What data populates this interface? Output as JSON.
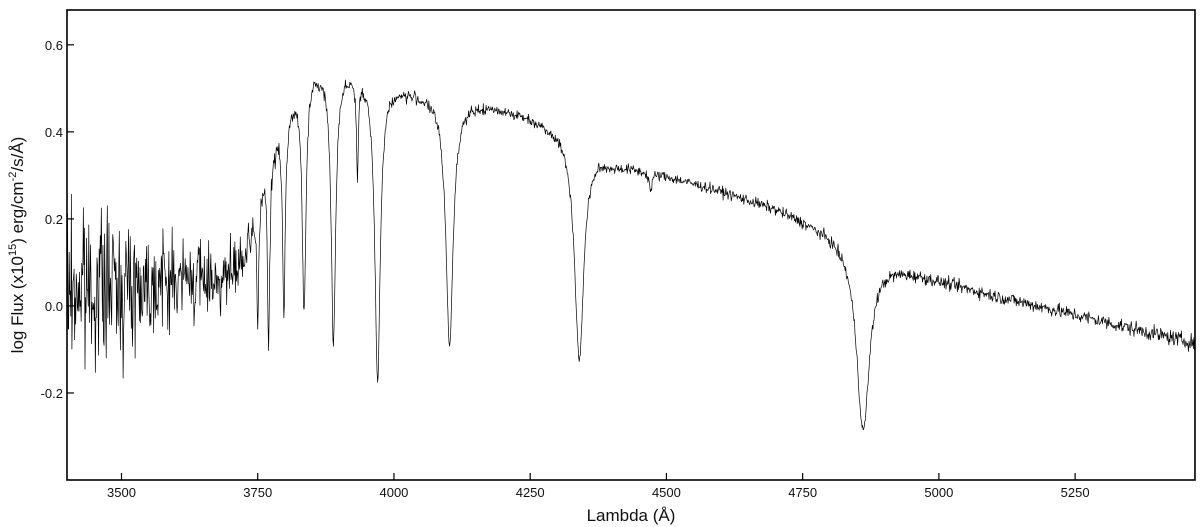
{
  "chart_data": {
    "type": "line",
    "xlabel": "Lambda (Å)",
    "ylabel_parts": {
      "pre": "log Flux (x10",
      "sup1": "15",
      "mid": ") erg/cm",
      "sup2": "-2",
      "post": "/s/Å)"
    },
    "xlim": [
      3400,
      5470
    ],
    "ylim": [
      -0.4,
      0.68
    ],
    "xticks": [
      3500,
      3750,
      4000,
      4250,
      4500,
      4750,
      5000,
      5250
    ],
    "xtick_labels": [
      "3500",
      "3750",
      "4000",
      "4250",
      "4500",
      "4750",
      "5000",
      "5250"
    ],
    "yticks": [
      -0.2,
      0.0,
      0.2,
      0.4,
      0.6
    ],
    "ytick_labels": [
      "-0.2",
      "0.0",
      "0.2",
      "0.4",
      "0.6"
    ],
    "line_color": "#000000",
    "grid": false,
    "series": [
      {
        "continuum": {
          "x": [
            3400,
            3500,
            3600,
            3700,
            3730,
            3760,
            3800,
            3850,
            3900,
            3950,
            4000,
            4050,
            4100,
            4150,
            4200,
            4250,
            4300,
            4350,
            4400,
            4450,
            4500,
            4600,
            4700,
            4800,
            4850,
            4900,
            5000,
            5100,
            5200,
            5300,
            5400,
            5470
          ],
          "y": [
            0.04,
            0.05,
            0.06,
            0.07,
            0.12,
            0.3,
            0.45,
            0.54,
            0.55,
            0.53,
            0.505,
            0.49,
            0.475,
            0.465,
            0.455,
            0.435,
            0.41,
            0.37,
            0.33,
            0.315,
            0.3,
            0.265,
            0.225,
            0.17,
            0.13,
            0.1,
            0.06,
            0.025,
            -0.005,
            -0.035,
            -0.065,
            -0.085
          ]
        },
        "absorption_lines": [
          {
            "center": 3750,
            "depth": 0.28,
            "width": 2
          },
          {
            "center": 3770,
            "depth": 0.42,
            "width": 2.5
          },
          {
            "center": 3798,
            "depth": 0.45,
            "width": 3
          },
          {
            "center": 3835,
            "depth": 0.52,
            "width": 4
          },
          {
            "center": 3889,
            "depth": 0.62,
            "width": 5
          },
          {
            "center": 3933,
            "depth": 0.22,
            "width": 2
          },
          {
            "center": 3970,
            "depth": 0.68,
            "width": 6
          },
          {
            "center": 4102,
            "depth": 0.56,
            "width": 8
          },
          {
            "center": 4340,
            "depth": 0.5,
            "width": 10
          },
          {
            "center": 4471,
            "depth": 0.04,
            "width": 3
          },
          {
            "center": 4861,
            "depth": 0.41,
            "width": 14
          }
        ],
        "noise": [
          {
            "x": [
              3400,
              3500,
              3600,
              3700,
              3750,
              3800,
              3900,
              4200,
              4600,
              5000,
              5470
            ],
            "amp": [
              0.17,
              0.12,
              0.08,
              0.06,
              0.03,
              0.015,
              0.012,
              0.01,
              0.01,
              0.012,
              0.015
            ]
          }
        ],
        "sampling_step": 1.0
      }
    ]
  }
}
